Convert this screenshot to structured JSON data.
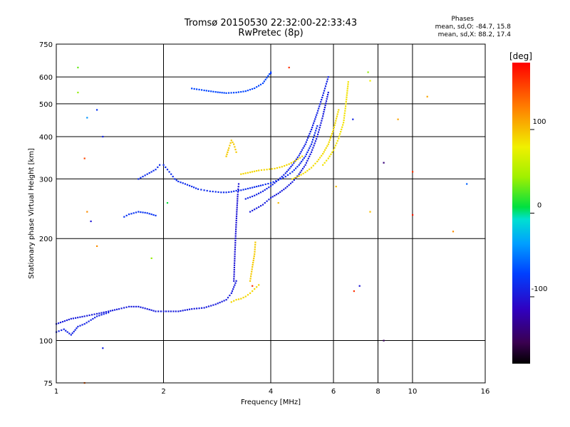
{
  "chart_data": {
    "type": "scatter",
    "title": "Tromsø 20150530 22:32:00-22:33:43",
    "subtitle": "RwPretec (8p)",
    "xlabel": "Frequency [MHz]",
    "ylabel": "Stationary phase Virtual Height [km]",
    "x_scale": "log",
    "y_scale": "log",
    "xlim": [
      1,
      16
    ],
    "ylim": [
      75,
      750
    ],
    "x_ticks": [
      "1",
      "2",
      "4",
      "6",
      "8",
      "10",
      "16"
    ],
    "y_ticks": [
      "75",
      "100",
      "200",
      "300",
      "400",
      "500",
      "600",
      "750"
    ],
    "grid": true,
    "phase_info": {
      "title": "Phases",
      "line1": "mean, sd,O: -84.7, 15.8",
      "line2": "mean, sd,X:  88.2, 17.4"
    },
    "colorbar": {
      "label": "[deg]",
      "ticks": [
        "100",
        "0",
        "-100"
      ],
      "range": [
        -180,
        180
      ]
    },
    "traces": [
      {
        "mode": "O",
        "phase": -95,
        "x": [
          1.0,
          1.1,
          1.2,
          1.3,
          1.4,
          1.5,
          1.6,
          1.7,
          1.8,
          1.9,
          2.0,
          2.2,
          2.4,
          2.6,
          2.8,
          3.0,
          3.1,
          3.2
        ],
        "y": [
          112,
          116,
          118,
          120,
          122,
          124,
          126,
          126,
          124,
          122,
          122,
          122,
          124,
          125,
          128,
          132,
          138,
          150
        ]
      },
      {
        "mode": "O",
        "phase": -90,
        "x": [
          1.0,
          1.05,
          1.1,
          1.15,
          1.2,
          1.25,
          1.3,
          1.4
        ],
        "y": [
          106,
          108,
          104,
          110,
          112,
          115,
          118,
          121
        ]
      },
      {
        "mode": "O",
        "phase": -80,
        "x": [
          1.55,
          1.6,
          1.7,
          1.8,
          1.9
        ],
        "y": [
          232,
          236,
          240,
          238,
          234
        ]
      },
      {
        "mode": "O",
        "phase": -85,
        "x": [
          1.7,
          1.8,
          1.9,
          1.95,
          2.0,
          2.05,
          2.1,
          2.15,
          2.2,
          2.3,
          2.4,
          2.5,
          2.6,
          2.7,
          2.8,
          2.9,
          3.0,
          3.1,
          3.2,
          3.3,
          3.4,
          3.5,
          3.6,
          3.8,
          4.0,
          4.2,
          4.4,
          4.6,
          4.8,
          5.0,
          5.2,
          5.4
        ],
        "y": [
          300,
          310,
          320,
          330,
          330,
          320,
          310,
          300,
          295,
          290,
          285,
          280,
          278,
          276,
          275,
          274,
          274,
          275,
          277,
          278,
          280,
          282,
          284,
          288,
          292,
          298,
          305,
          315,
          330,
          350,
          380,
          430
        ]
      },
      {
        "mode": "O",
        "phase": -95,
        "x": [
          3.5,
          3.6,
          3.7,
          3.8,
          3.9,
          4.0,
          4.2,
          4.4,
          4.6,
          4.8,
          5.0,
          5.2,
          5.4,
          5.6,
          5.8
        ],
        "y": [
          240,
          244,
          248,
          252,
          258,
          264,
          272,
          282,
          294,
          310,
          330,
          360,
          400,
          460,
          540
        ]
      },
      {
        "mode": "O",
        "phase": -100,
        "x": [
          3.15,
          3.17,
          3.19,
          3.21,
          3.23,
          3.25
        ],
        "y": [
          150,
          180,
          210,
          240,
          270,
          290
        ]
      },
      {
        "mode": "O",
        "phase": -90,
        "x": [
          3.4,
          3.6,
          3.8,
          4.0,
          4.2,
          4.4,
          4.6,
          4.8,
          5.0,
          5.2,
          5.4,
          5.6,
          5.8
        ],
        "y": [
          262,
          268,
          276,
          286,
          298,
          312,
          330,
          352,
          380,
          420,
          470,
          530,
          600
        ]
      },
      {
        "mode": "O",
        "phase": -70,
        "x": [
          2.4,
          2.6,
          2.8,
          3.0,
          3.2,
          3.4,
          3.6,
          3.8,
          4.0
        ],
        "y": [
          555,
          548,
          542,
          538,
          540,
          545,
          556,
          575,
          620
        ]
      },
      {
        "mode": "X",
        "phase": 95,
        "x": [
          3.0,
          3.05,
          3.1,
          3.15,
          3.2
        ],
        "y": [
          350,
          370,
          390,
          380,
          360
        ]
      },
      {
        "mode": "X",
        "phase": 90,
        "x": [
          3.3,
          3.5,
          3.7,
          3.9,
          4.1,
          4.3,
          4.5,
          4.7,
          4.9
        ],
        "y": [
          310,
          314,
          318,
          320,
          322,
          326,
          332,
          340,
          350
        ]
      },
      {
        "mode": "X",
        "phase": 88,
        "x": [
          4.6,
          4.8,
          5.0,
          5.2,
          5.4,
          5.6,
          5.8,
          6.0,
          6.2
        ],
        "y": [
          300,
          306,
          314,
          324,
          338,
          356,
          380,
          420,
          480
        ]
      },
      {
        "mode": "X",
        "phase": 85,
        "x": [
          5.6,
          5.8,
          6.0,
          6.2,
          6.4,
          6.5,
          6.6
        ],
        "y": [
          330,
          345,
          365,
          395,
          440,
          500,
          580
        ]
      },
      {
        "mode": "X",
        "phase": 90,
        "x": [
          3.1,
          3.2,
          3.3,
          3.4,
          3.5,
          3.6,
          3.7
        ],
        "y": [
          130,
          132,
          133,
          135,
          138,
          142,
          146
        ]
      },
      {
        "mode": "X",
        "phase": 95,
        "x": [
          3.5,
          3.55,
          3.6,
          3.62
        ],
        "y": [
          150,
          165,
          180,
          195
        ]
      }
    ],
    "scatter_points": [
      {
        "x": 1.15,
        "y": 640,
        "phase": 30
      },
      {
        "x": 1.15,
        "y": 540,
        "phase": 40
      },
      {
        "x": 1.22,
        "y": 455,
        "phase": -40
      },
      {
        "x": 1.3,
        "y": 480,
        "phase": -80
      },
      {
        "x": 1.35,
        "y": 400,
        "phase": -90
      },
      {
        "x": 1.2,
        "y": 345,
        "phase": 150
      },
      {
        "x": 1.22,
        "y": 240,
        "phase": 120
      },
      {
        "x": 1.25,
        "y": 225,
        "phase": -100
      },
      {
        "x": 1.3,
        "y": 190,
        "phase": 120
      },
      {
        "x": 1.35,
        "y": 95,
        "phase": -90
      },
      {
        "x": 1.2,
        "y": 75,
        "phase": 140
      },
      {
        "x": 1.85,
        "y": 175,
        "phase": 40
      },
      {
        "x": 2.05,
        "y": 255,
        "phase": 10
      },
      {
        "x": 3.55,
        "y": 145,
        "phase": 160
      },
      {
        "x": 4.2,
        "y": 255,
        "phase": 100
      },
      {
        "x": 6.1,
        "y": 285,
        "phase": 100
      },
      {
        "x": 6.8,
        "y": 450,
        "phase": -90
      },
      {
        "x": 6.85,
        "y": 140,
        "phase": 160
      },
      {
        "x": 7.1,
        "y": 145,
        "phase": -100
      },
      {
        "x": 7.5,
        "y": 620,
        "phase": 40
      },
      {
        "x": 7.6,
        "y": 585,
        "phase": 80
      },
      {
        "x": 7.6,
        "y": 240,
        "phase": 100
      },
      {
        "x": 8.3,
        "y": 335,
        "phase": -140
      },
      {
        "x": 8.3,
        "y": 100,
        "phase": -150
      },
      {
        "x": 9.1,
        "y": 450,
        "phase": 110
      },
      {
        "x": 10.0,
        "y": 315,
        "phase": 160
      },
      {
        "x": 10.0,
        "y": 235,
        "phase": 170
      },
      {
        "x": 11.0,
        "y": 525,
        "phase": 110
      },
      {
        "x": 13.0,
        "y": 210,
        "phase": 120
      },
      {
        "x": 14.2,
        "y": 290,
        "phase": -60
      },
      {
        "x": 4.0,
        "y": 615,
        "phase": -80
      },
      {
        "x": 4.5,
        "y": 640,
        "phase": 160
      }
    ]
  }
}
